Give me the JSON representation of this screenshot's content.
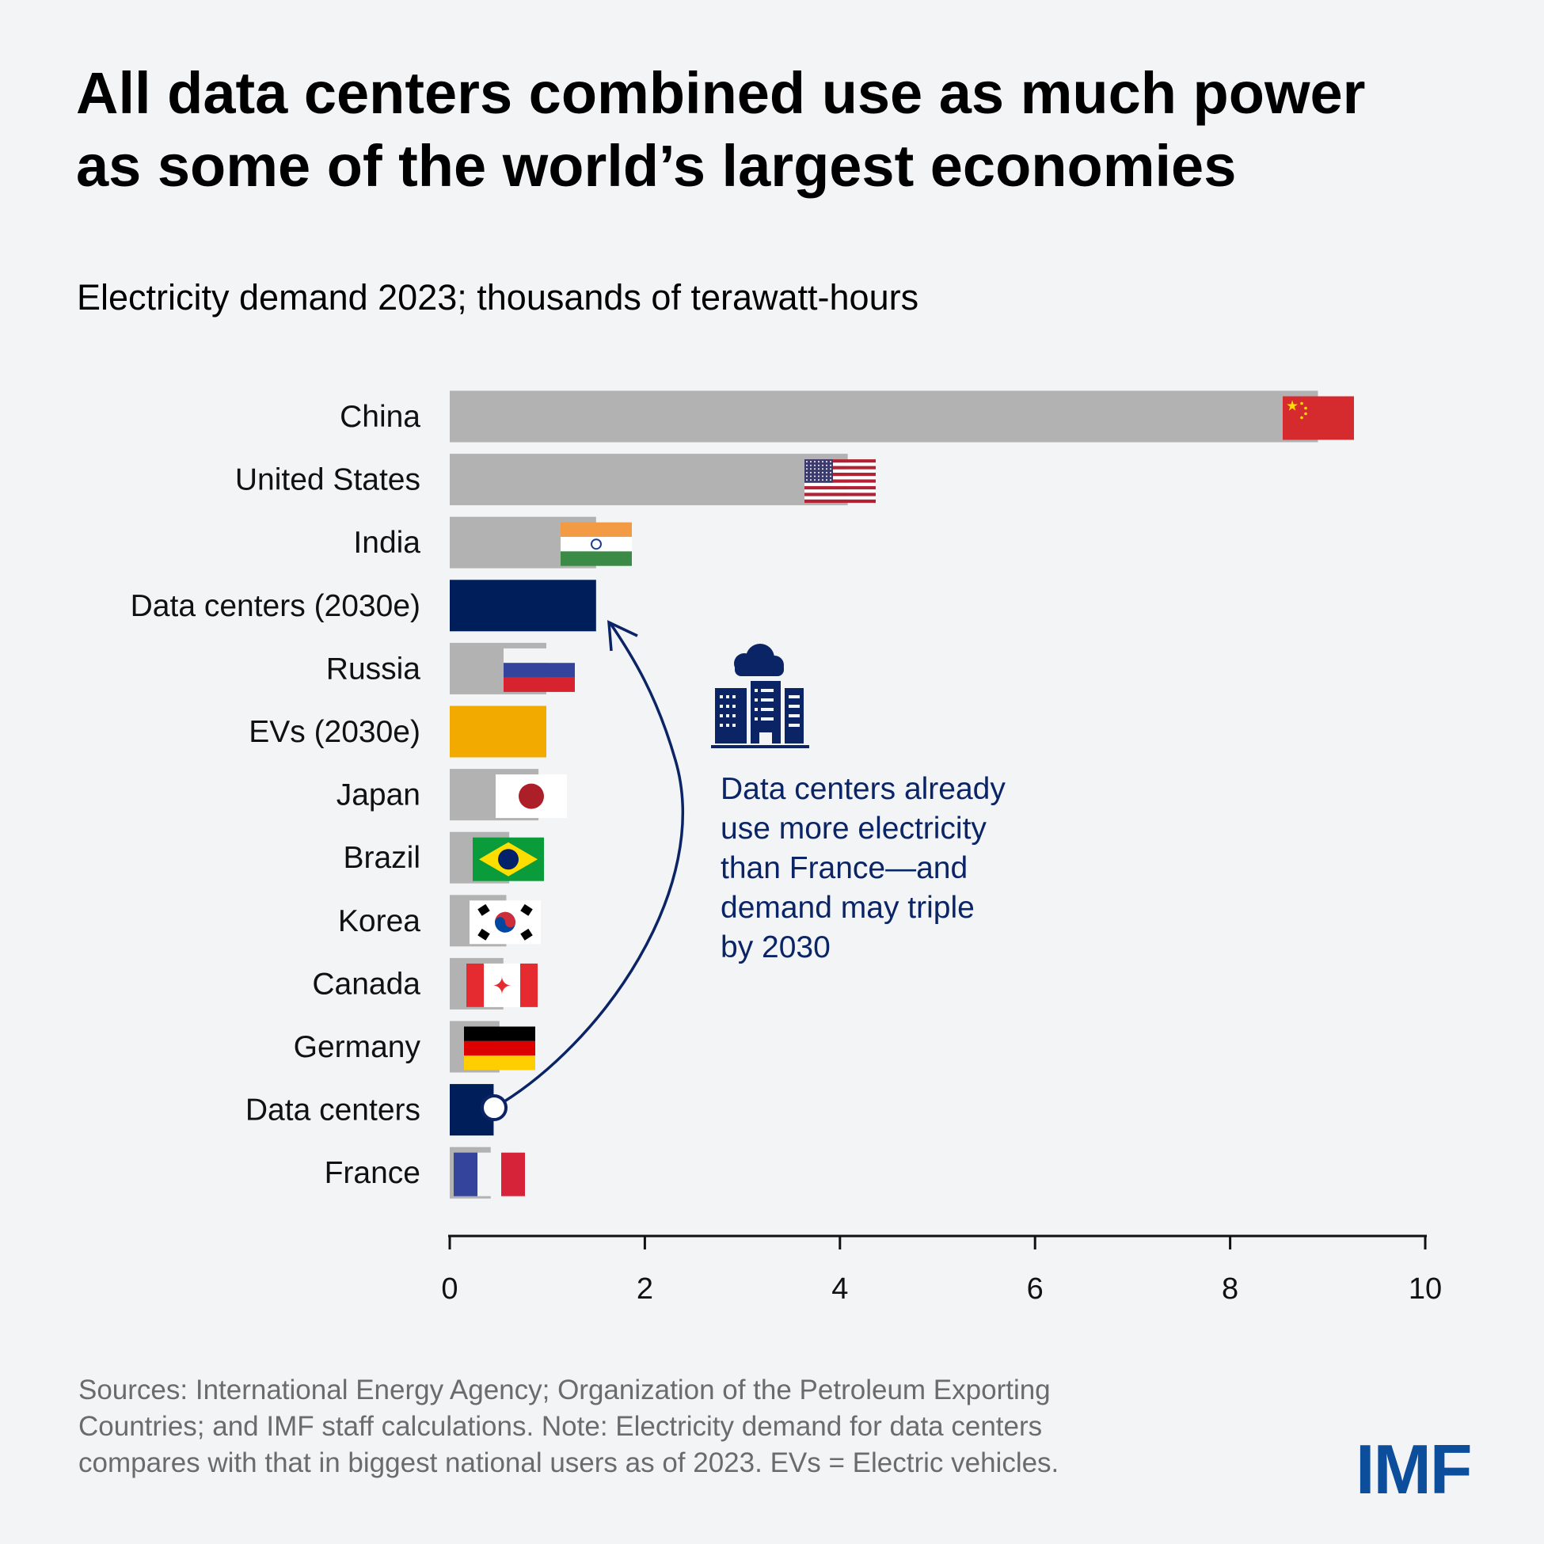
{
  "title_lines": [
    "All data centers combined use as much power",
    "as some of the world’s largest economies"
  ],
  "subtitle": "Electricity demand 2023; thousands of terawatt-hours",
  "annotation": {
    "lines": [
      "Data centers already",
      "use more electricity",
      "than France—and",
      "demand may triple",
      "by 2030"
    ],
    "icon": "cloud-data-center-building-icon"
  },
  "footer_lines": [
    "Sources: International Energy Agency; Organization of the Petroleum Exporting",
    "Countries; and IMF staff calculations. Note: Electricity demand for data centers",
    "compares with that in biggest national users as of 2023. EVs = Electric vehicles."
  ],
  "logo": "IMF",
  "colors": {
    "country": "#b1b2b1",
    "data_centers": "#001e5a",
    "evs": "#f2a900",
    "background": "#f3f4f6",
    "annotation": "#0b2466"
  },
  "chart_data": {
    "type": "bar",
    "orientation": "horizontal",
    "title": "",
    "xlabel": "",
    "ylabel": "",
    "xlim": [
      0,
      10
    ],
    "xticks": [
      "0",
      "2",
      "4",
      "6",
      "8",
      "10"
    ],
    "grid": false,
    "categories": [
      "China",
      "United States",
      "India",
      "Data centers (2030e)",
      "Russia",
      "EVs (2030e)",
      "Japan",
      "Brazil",
      "Korea",
      "Canada",
      "Germany",
      "Data centers",
      "France"
    ],
    "values": [
      8.9,
      4.08,
      1.5,
      1.5,
      0.99,
      0.99,
      0.91,
      0.61,
      0.58,
      0.55,
      0.51,
      0.45,
      0.42
    ],
    "kinds": [
      "country",
      "country",
      "country",
      "data_centers",
      "country",
      "evs",
      "country",
      "country",
      "country",
      "country",
      "country",
      "data_centers",
      "country"
    ],
    "flags": [
      "china-flag",
      "usa-flag",
      "india-flag",
      null,
      "russia-flag",
      null,
      "japan-flag",
      "brazil-flag",
      "korea-flag",
      "canada-flag",
      "germany-flag",
      null,
      "france-flag"
    ]
  }
}
